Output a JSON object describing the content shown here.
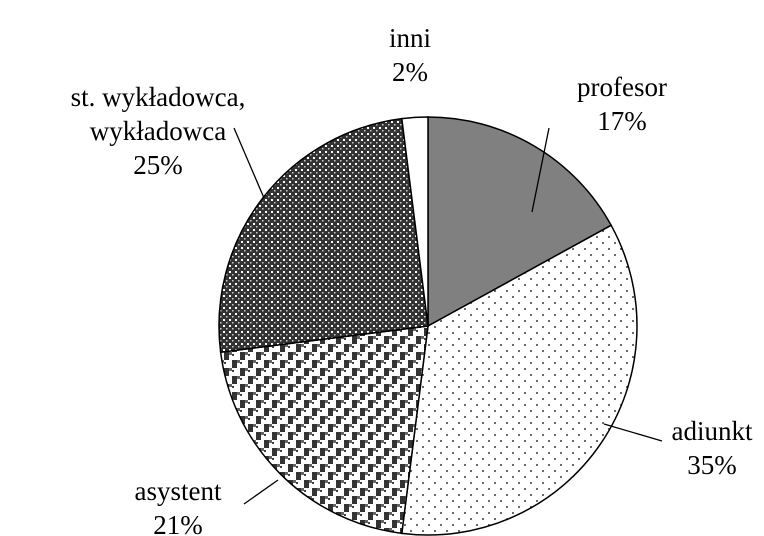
{
  "chart_data": {
    "type": "pie",
    "categories": [
      "profesor",
      "adiunkt",
      "asystent",
      "st. wykładowca, wykładowca",
      "inni"
    ],
    "values": [
      17,
      35,
      21,
      25,
      2
    ],
    "value_labels": [
      "17%",
      "35%",
      "21%",
      "25%",
      "2%"
    ]
  }
}
